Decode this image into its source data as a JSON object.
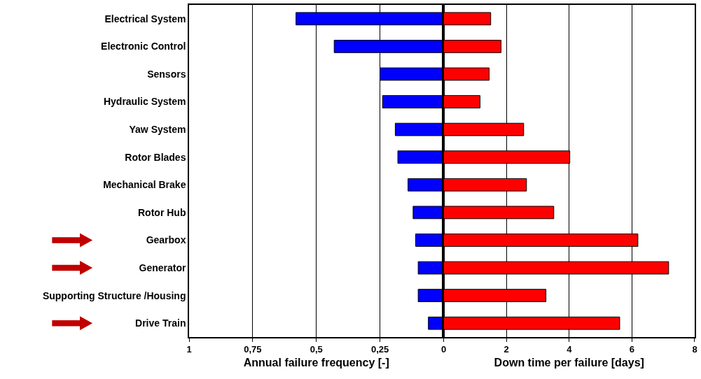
{
  "chart_data": [
    {
      "type": "bar",
      "orientation": "horizontal",
      "xlabel": "Annual failure frequency [-]",
      "categories": [
        "Electrical System",
        "Electronic Control",
        "Sensors",
        "Hydraulic System",
        "Yaw System",
        "Rotor Blades",
        "Mechanical Brake",
        "Rotor Hub",
        "Gearbox",
        "Generator",
        "Supporting Structure /Housing",
        "Drive Train"
      ],
      "values": [
        0.58,
        0.43,
        0.25,
        0.24,
        0.19,
        0.18,
        0.14,
        0.12,
        0.11,
        0.1,
        0.1,
        0.06
      ],
      "color": "#0000ff",
      "xlim": [
        1,
        0
      ],
      "xticks": [
        {
          "value": 1,
          "label": "1"
        },
        {
          "value": 0.75,
          "label": "0,75"
        },
        {
          "value": 0.5,
          "label": "0,5"
        },
        {
          "value": 0.25,
          "label": "0,25"
        },
        {
          "value": 0,
          "label": null
        }
      ],
      "grid": "x"
    },
    {
      "type": "bar",
      "orientation": "horizontal",
      "xlabel": "Down time per failure [days]",
      "categories": [
        "Electrical System",
        "Electronic Control",
        "Sensors",
        "Hydraulic System",
        "Yaw System",
        "Rotor Blades",
        "Mechanical Brake",
        "Rotor Hub",
        "Gearbox",
        "Generator",
        "Supporting Structure /Housing",
        "Drive Train"
      ],
      "values": [
        1.5,
        1.83,
        1.45,
        1.16,
        2.55,
        4.02,
        2.64,
        3.51,
        6.19,
        7.17,
        3.26,
        5.61
      ],
      "color": "#ff0000",
      "xlim": [
        0,
        8
      ],
      "xticks": [
        0,
        2,
        4,
        6,
        8
      ],
      "grid": "x",
      "tick_labels": "x"
    }
  ]
}
